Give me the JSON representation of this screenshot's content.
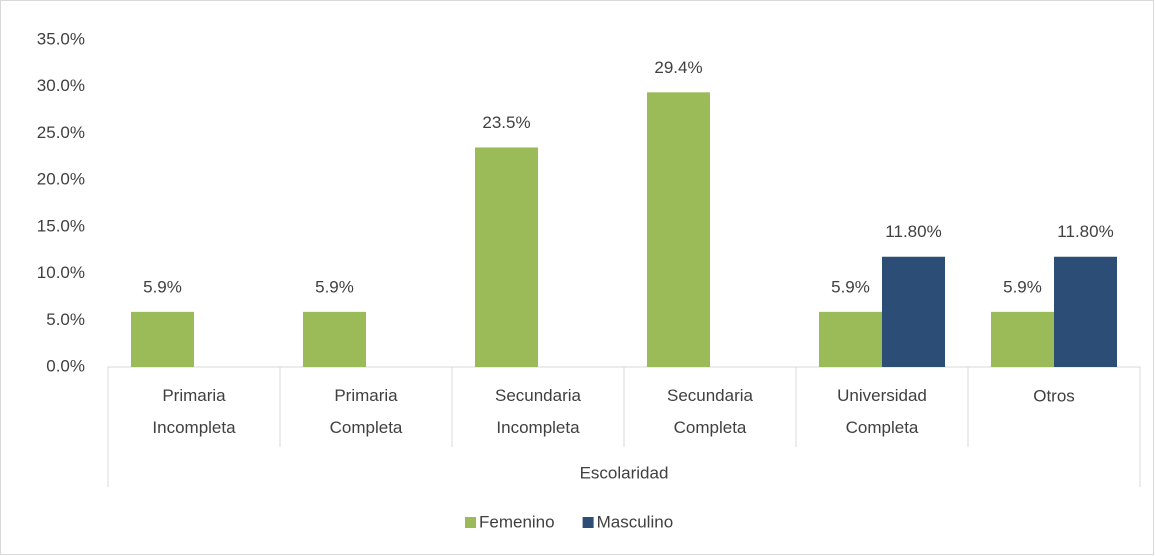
{
  "chart_data": {
    "type": "bar",
    "x_label": "Escolaridad",
    "categories": [
      "Primaria Incompleta",
      "Primaria Completa",
      "Secundaria Incompleta",
      "Secundaria Completa",
      "Universidad Completa",
      "Otros"
    ],
    "series": [
      {
        "name": "Femenino",
        "color": "#9bbb59",
        "values": [
          5.9,
          5.9,
          23.5,
          29.4,
          5.9,
          5.9
        ],
        "value_labels": [
          "5.9%",
          "5.9%",
          "23.5%",
          "29.4%",
          "5.9%",
          "5.9%"
        ]
      },
      {
        "name": "Masculino",
        "color": "#2c4d75",
        "values": [
          null,
          null,
          null,
          null,
          11.8,
          11.8
        ],
        "value_labels": [
          null,
          null,
          null,
          null,
          "11.80%",
          "11.80%"
        ]
      }
    ],
    "ylim": [
      0,
      35
    ],
    "yticks": [
      {
        "value": 0,
        "label": "0.0%"
      },
      {
        "value": 5,
        "label": "5.0%"
      },
      {
        "value": 10,
        "label": "10.0%"
      },
      {
        "value": 15,
        "label": "15.0%"
      },
      {
        "value": 20,
        "label": "20.0%"
      },
      {
        "value": 25,
        "label": "25.0%"
      },
      {
        "value": 30,
        "label": "30.0%"
      },
      {
        "value": 35,
        "label": "35.0%"
      }
    ],
    "grid": false,
    "legend": "bottom"
  }
}
